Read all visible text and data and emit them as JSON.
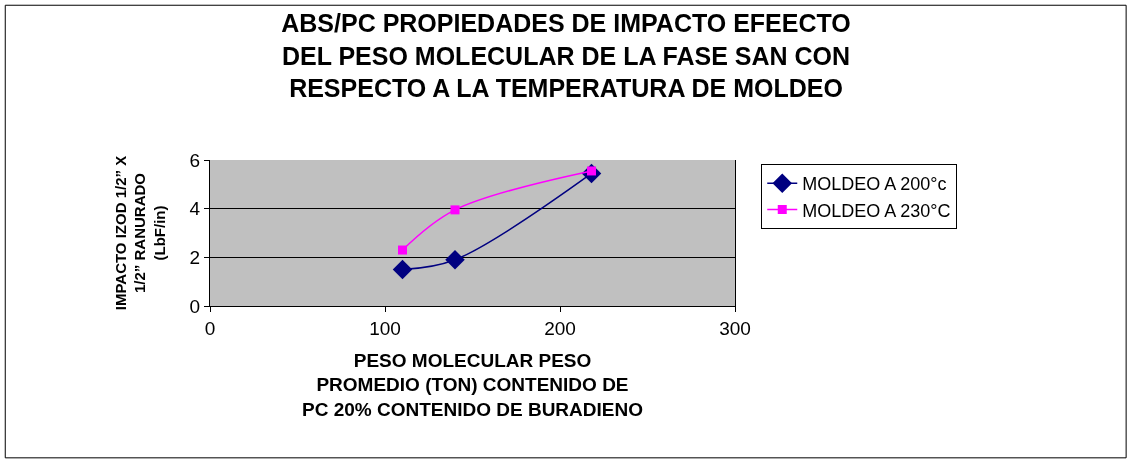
{
  "chart_data": {
    "type": "line",
    "title": "ABS/PC PROPIEDADES DE IMPACTO EFEECTO\nDEL PESO MOLECULAR DE LA FASE SAN CON\nRESPECTO A LA TEMPERATURA DE MOLDEO",
    "xlabel": "PESO MOLECULAR PESO\nPROMEDIO (TON) CONTENIDO DE\nPC 20% CONTENIDO DE BURADIENO",
    "ylabel": "IMPACTO IZOD 1/2” X\n1/2” RANURADO\n(LbF/in)",
    "series": [
      {
        "name": "MOLDEO A 200°c",
        "color": "#000080",
        "marker": "diamond",
        "x": [
          110,
          140,
          218
        ],
        "values": [
          1.5,
          1.9,
          5.45
        ]
      },
      {
        "name": "MOLDEO A 230°C",
        "color": "#ff00ff",
        "marker": "square",
        "x": [
          110,
          140,
          218
        ],
        "values": [
          2.3,
          3.95,
          5.55
        ]
      }
    ],
    "xlim": [
      0,
      300
    ],
    "xticks": [
      0,
      100,
      200,
      300
    ],
    "ylim": [
      0,
      6
    ],
    "yticks": [
      0,
      2,
      4,
      6
    ],
    "grid": "y",
    "legend": "right"
  }
}
